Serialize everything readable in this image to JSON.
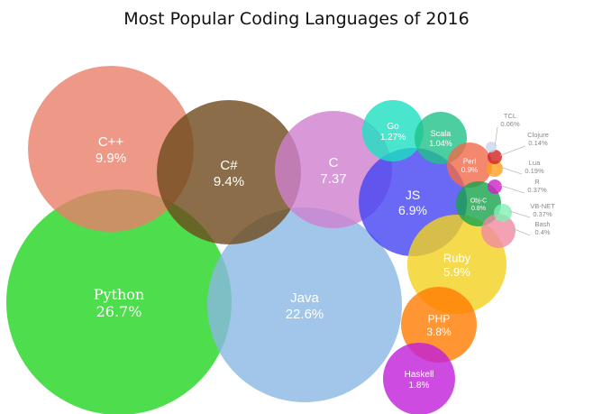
{
  "chart_data": {
    "type": "bubble",
    "title": "Most Popular Coding Languages of 2016",
    "bubbles": [
      {
        "name": "Python",
        "value_label": "26.7%",
        "value": 26.7,
        "color": "#22d41f"
      },
      {
        "name": "Java",
        "value_label": "22.6%",
        "value": 22.6,
        "color": "#8bb8e3"
      },
      {
        "name": "C++",
        "value_label": "9.9%",
        "value": 9.9,
        "color": "#ea7f6a"
      },
      {
        "name": "C#",
        "value_label": "9.4%",
        "value": 9.4,
        "color": "#6e4a1c"
      },
      {
        "name": "C",
        "value_label": "7.37",
        "value": 7.37,
        "color": "#cf7fd0"
      },
      {
        "name": "JS",
        "value_label": "6.9%",
        "value": 6.9,
        "color": "#4343f2"
      },
      {
        "name": "Ruby",
        "value_label": "5.9%",
        "value": 5.9,
        "color": "#f2d21f"
      },
      {
        "name": "PHP",
        "value_label": "3.8%",
        "value": 3.8,
        "color": "#ff7a00"
      },
      {
        "name": "Haskell",
        "value_label": "1.8%",
        "value": 1.8,
        "color": "#c21edb"
      },
      {
        "name": "Go",
        "value_label": "1.27%",
        "value": 1.27,
        "color": "#1ce0c0"
      },
      {
        "name": "Scala",
        "value_label": "1.04%",
        "value": 1.04,
        "color": "#20c28a"
      },
      {
        "name": "Perl",
        "value_label": "0.9%",
        "value": 0.9,
        "color": "#f06a4a"
      },
      {
        "name": "Obj-C",
        "value_label": "0.8%",
        "value": 0.8,
        "color": "#16a34c"
      },
      {
        "name": "Bash",
        "value_label": "0.4%",
        "value": 0.4,
        "color": "#f08aa0"
      },
      {
        "name": "VB-NET",
        "value_label": "0.37%",
        "value": 0.37,
        "color": "#7ff0b4"
      },
      {
        "name": "R",
        "value_label": "0.37%",
        "value": 0.37,
        "color": "#d020c8"
      },
      {
        "name": "Lua",
        "value_label": "0.19%",
        "value": 0.19,
        "color": "#ffa020"
      },
      {
        "name": "Clojure",
        "value_label": "0.14%",
        "value": 0.14,
        "color": "#d42020"
      },
      {
        "name": "TCL",
        "value_label": "0.06%",
        "value": 0.06,
        "color": "#c8d8f0"
      }
    ]
  }
}
